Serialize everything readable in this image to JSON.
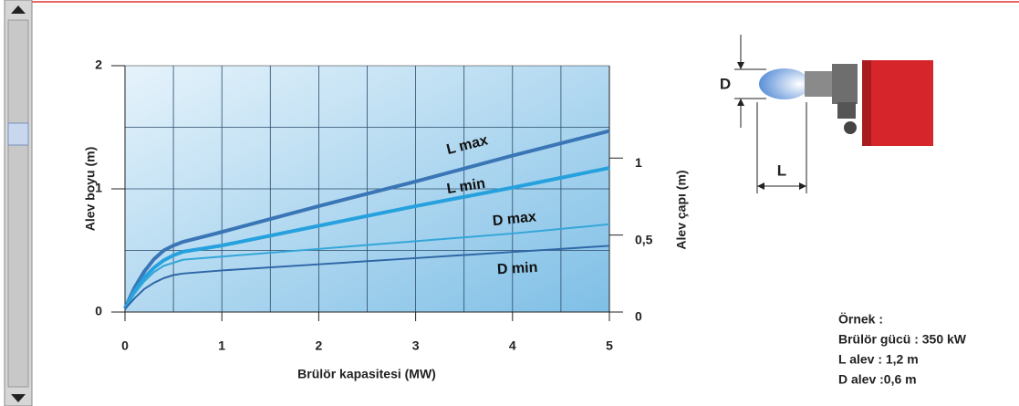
{
  "chart_data": {
    "type": "line",
    "xlabel": "Brülör kapasitesi (MW)",
    "ylabel": "Alev boyu (m)",
    "y2label": "Alev çapı (m)",
    "x": [
      0,
      0.1,
      0.2,
      0.3,
      0.4,
      0.5,
      0.6,
      1,
      2,
      3,
      4,
      5
    ],
    "series": [
      {
        "name": "L max",
        "color": "#3a76b6",
        "values": [
          0.03,
          0.2,
          0.33,
          0.43,
          0.5,
          0.54,
          0.57,
          0.65,
          0.86,
          1.06,
          1.27,
          1.47
        ]
      },
      {
        "name": "L min",
        "color": "#27a1de",
        "values": [
          0.03,
          0.17,
          0.28,
          0.36,
          0.42,
          0.46,
          0.49,
          0.54,
          0.7,
          0.86,
          1.01,
          1.17
        ]
      },
      {
        "name": "D max",
        "color": "#33a6d8",
        "axis": "y2",
        "values": [
          0.02,
          0.12,
          0.2,
          0.26,
          0.3,
          0.32,
          0.34,
          0.36,
          0.41,
          0.46,
          0.51,
          0.57
        ]
      },
      {
        "name": "D min",
        "color": "#2e66a6",
        "axis": "y2",
        "values": [
          0.02,
          0.09,
          0.15,
          0.19,
          0.22,
          0.24,
          0.25,
          0.27,
          0.31,
          0.35,
          0.39,
          0.43
        ]
      }
    ],
    "xlim": [
      0,
      5
    ],
    "xticks": [
      0,
      1,
      2,
      3,
      4,
      5
    ],
    "ylim": [
      0,
      2
    ],
    "yticks": [
      0,
      1,
      2
    ],
    "y2lim": [
      0,
      1.6
    ],
    "y2ticks": [
      0,
      {
        "value": 0.5,
        "label": "0,5"
      },
      1
    ],
    "grid_x": [
      0.5,
      1,
      1.5,
      2,
      2.5,
      3,
      3.5,
      4,
      4.5
    ],
    "grid_y": [
      0.5,
      1,
      1.5
    ],
    "grid": true
  },
  "diagram": {
    "d_label": "D",
    "l_label": "L"
  },
  "example": [
    "Örnek :",
    "Brülör gücü : 350 kW",
    "L alev  : 1,2 m",
    "D alev :0,6 m"
  ]
}
